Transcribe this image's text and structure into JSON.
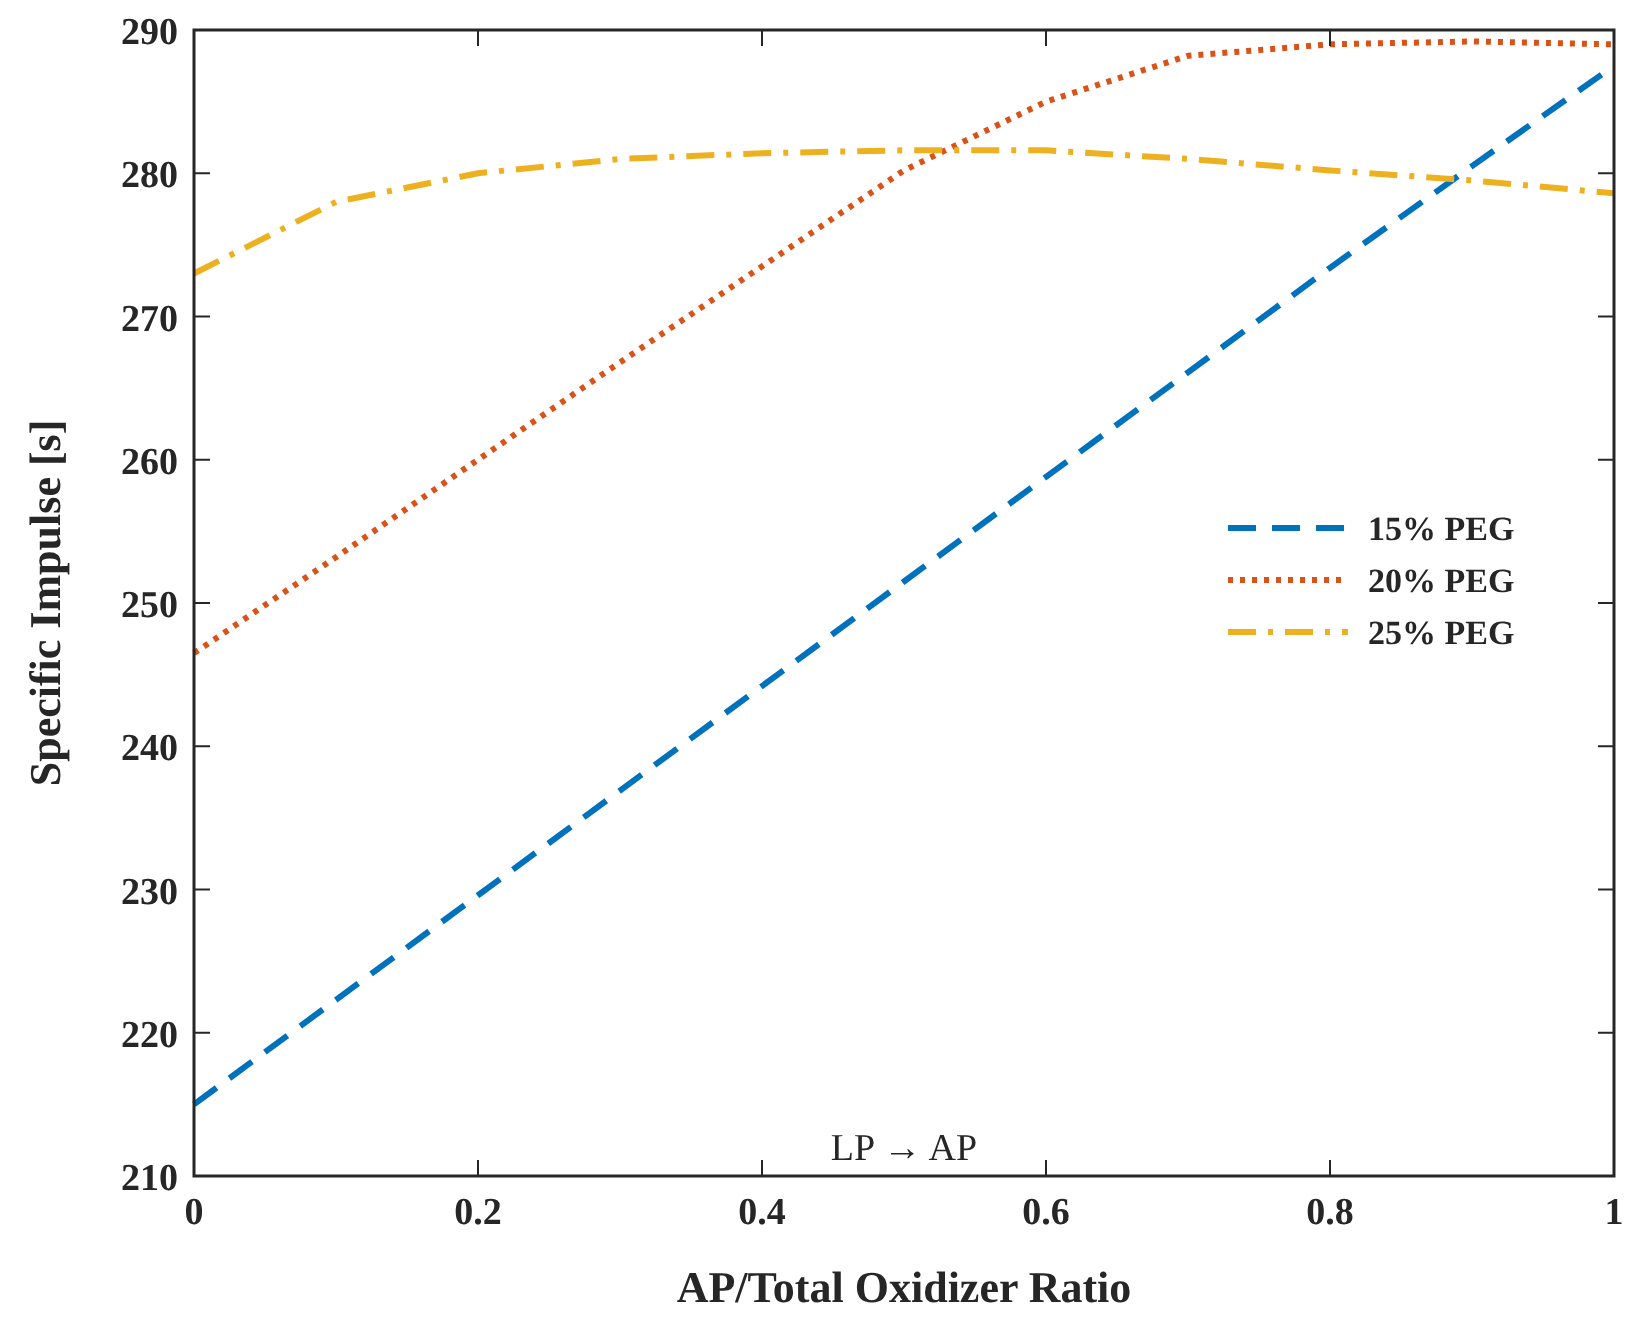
{
  "chart_data": {
    "type": "line",
    "xlabel": "AP/Total Oxidizer Ratio",
    "ylabel": "Specific Impulse [s]",
    "x": [
      0,
      0.1,
      0.2,
      0.3,
      0.4,
      0.5,
      0.6,
      0.7,
      0.8,
      0.9,
      1
    ],
    "series": [
      {
        "name": "15% PEG",
        "color": "#0072bd",
        "line_style": "dashed",
        "values": [
          215,
          222.3,
          229.6,
          236.9,
          244.2,
          251.5,
          258.8,
          266.1,
          273.4,
          280.5,
          287.5
        ]
      },
      {
        "name": "20% PEG",
        "color": "#d95319",
        "line_style": "dotted",
        "values": [
          246.5,
          253.2,
          260,
          266.8,
          273.5,
          280.2,
          285,
          288.2,
          289,
          289.2,
          289
        ]
      },
      {
        "name": "25% PEG",
        "color": "#edb120",
        "line_style": "dashdot",
        "values": [
          273,
          278,
          280,
          281,
          281.4,
          281.6,
          281.6,
          281,
          280.2,
          279.5,
          278.6
        ]
      }
    ],
    "xlim": [
      0,
      1
    ],
    "ylim": [
      210,
      290
    ],
    "xticks": [
      0,
      0.2,
      0.4,
      0.6,
      0.8,
      1
    ],
    "yticks": [
      210,
      220,
      230,
      240,
      250,
      260,
      270,
      280,
      290
    ],
    "annotations": [
      "LP → AP"
    ],
    "legend": "right",
    "grid": false
  }
}
